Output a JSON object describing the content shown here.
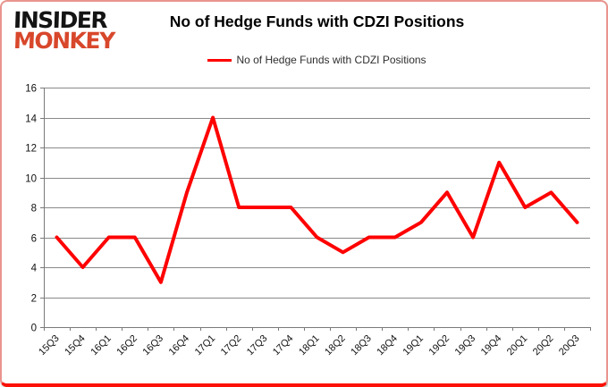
{
  "logo": {
    "line1": "INSIDER",
    "line2": "MONKEY"
  },
  "header": {
    "title": "No of Hedge Funds with CDZI Positions"
  },
  "legend": {
    "label": "No of Hedge Funds with CDZI Positions"
  },
  "chart_data": {
    "type": "line",
    "title": "No of Hedge Funds with CDZI Positions",
    "categories": [
      "15Q3",
      "15Q4",
      "16Q1",
      "16Q2",
      "16Q3",
      "16Q4",
      "17Q1",
      "17Q2",
      "17Q3",
      "17Q4",
      "18Q1",
      "18Q2",
      "18Q3",
      "18Q4",
      "19Q1",
      "19Q2",
      "19Q3",
      "19Q4",
      "20Q1",
      "20Q2",
      "20Q3"
    ],
    "values": [
      6,
      4,
      6,
      6,
      3,
      9,
      14,
      8,
      8,
      8,
      6,
      5,
      6,
      6,
      7,
      9,
      6,
      11,
      8,
      9,
      7
    ],
    "xlabel": "",
    "ylabel": "",
    "ylim": [
      0,
      16
    ],
    "yticks": [
      0,
      2,
      4,
      6,
      8,
      10,
      12,
      14,
      16
    ],
    "grid": "on",
    "legend_position": "top-center",
    "series_name": "No of Hedge Funds with CDZI Positions"
  },
  "colors": {
    "line": "#ff0000",
    "grid": "#8a8a8a",
    "axis": "#7a7a7a",
    "tick_label": "#111111",
    "logo_black": "#141414",
    "logo_red": "#d8472b",
    "frame_border": "#fb1105"
  }
}
